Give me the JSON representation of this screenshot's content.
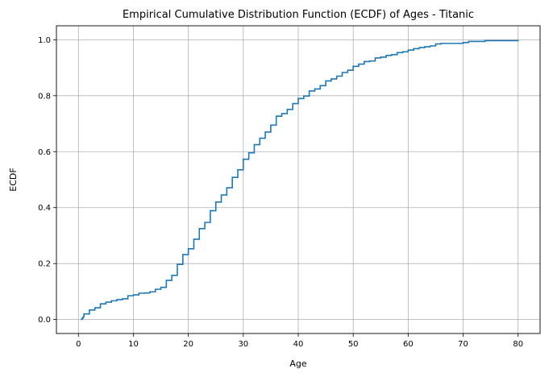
{
  "chart_data": {
    "type": "line",
    "drawstyle": "steps-post",
    "title": "Empirical Cumulative Distribution Function (ECDF) of Ages - Titanic",
    "xlabel": "Age",
    "ylabel": "ECDF",
    "xlim": [
      -4,
      84
    ],
    "ylim": [
      -0.05,
      1.05
    ],
    "xticks": [
      0,
      10,
      20,
      30,
      40,
      50,
      60,
      70,
      80
    ],
    "xtick_labels": [
      "0",
      "10",
      "20",
      "30",
      "40",
      "50",
      "60",
      "70",
      "80"
    ],
    "yticks": [
      0.0,
      0.2,
      0.4,
      0.6,
      0.8,
      1.0
    ],
    "ytick_labels": [
      "0.0",
      "0.2",
      "0.4",
      "0.6",
      "0.8",
      "1.0"
    ],
    "grid": true,
    "line_color": "#1f77b4",
    "series": [
      {
        "x": [
          0.42,
          0.67,
          0.75,
          0.83,
          0.92,
          1,
          2,
          3,
          4,
          5,
          6,
          7,
          8,
          9,
          10,
          11,
          12,
          13,
          14,
          15,
          16,
          17,
          18,
          19,
          20,
          21,
          22,
          23,
          24,
          25,
          26,
          27,
          28,
          29,
          30,
          31,
          32,
          33,
          34,
          35,
          36,
          37,
          38,
          39,
          40,
          41,
          42,
          43,
          44,
          45,
          46,
          47,
          48,
          49,
          50,
          51,
          52,
          53,
          54,
          55,
          56,
          57,
          58,
          59,
          60,
          61,
          62,
          63,
          64,
          65,
          66,
          70,
          71,
          74,
          80
        ],
        "y": [
          0.001,
          0.003,
          0.006,
          0.008,
          0.01,
          0.02,
          0.034,
          0.042,
          0.056,
          0.062,
          0.067,
          0.071,
          0.074,
          0.085,
          0.088,
          0.094,
          0.095,
          0.099,
          0.108,
          0.115,
          0.14,
          0.158,
          0.197,
          0.232,
          0.253,
          0.287,
          0.325,
          0.347,
          0.389,
          0.42,
          0.445,
          0.471,
          0.508,
          0.535,
          0.573,
          0.596,
          0.625,
          0.648,
          0.67,
          0.695,
          0.727,
          0.736,
          0.751,
          0.772,
          0.79,
          0.799,
          0.817,
          0.824,
          0.836,
          0.853,
          0.86,
          0.87,
          0.883,
          0.891,
          0.905,
          0.913,
          0.922,
          0.924,
          0.935,
          0.938,
          0.944,
          0.947,
          0.954,
          0.957,
          0.963,
          0.968,
          0.972,
          0.975,
          0.978,
          0.985,
          0.987,
          0.99,
          0.994,
          0.997,
          1.0
        ]
      }
    ]
  }
}
